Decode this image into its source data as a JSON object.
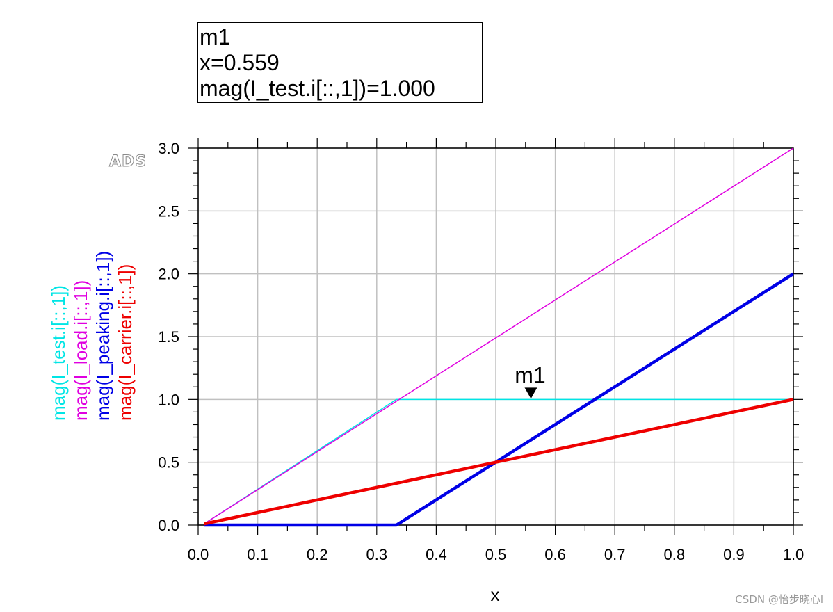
{
  "marker_readout": {
    "name": "m1",
    "x_line": "x=0.559",
    "y_line": "mag(I_test.i[::,1])=1.000"
  },
  "logo_text": "ADS",
  "watermark": "CSDN @怡步晓心l",
  "chart_data": {
    "type": "line",
    "xlabel": "x",
    "ylabel": "",
    "xlim": [
      0.0,
      1.0
    ],
    "ylim": [
      0.0,
      3.0
    ],
    "x_ticks": [
      "0.0",
      "0.1",
      "0.2",
      "0.3",
      "0.4",
      "0.5",
      "0.6",
      "0.7",
      "0.8",
      "0.9",
      "1.0"
    ],
    "y_ticks": [
      "0.0",
      "0.5",
      "1.0",
      "1.5",
      "2.0",
      "2.5",
      "3.0"
    ],
    "grid": true,
    "legend_placement": "left, vertical",
    "series": [
      {
        "name": "mag(I_test.i[::,1])",
        "color": "#00e5e5",
        "width": 1.5,
        "x": [
          0.01,
          0.333,
          1.0
        ],
        "y": [
          0.01,
          1.0,
          1.0
        ]
      },
      {
        "name": "mag(I_load.i[::,1])",
        "color": "#e000e0",
        "width": 1.5,
        "x": [
          0.01,
          1.0
        ],
        "y": [
          0.01,
          3.0
        ]
      },
      {
        "name": "mag(I_peaking.i[::,1])",
        "color": "#0000e6",
        "width": 4.5,
        "x": [
          0.01,
          0.333,
          1.0
        ],
        "y": [
          0.0,
          0.0,
          2.0
        ]
      },
      {
        "name": "mag(I_carrier.i[::,1])",
        "color": "#ee0000",
        "width": 4.5,
        "x": [
          0.01,
          1.0
        ],
        "y": [
          0.01,
          1.0
        ]
      }
    ],
    "markers": [
      {
        "name": "m1",
        "x": 0.559,
        "y": 1.0
      }
    ]
  }
}
